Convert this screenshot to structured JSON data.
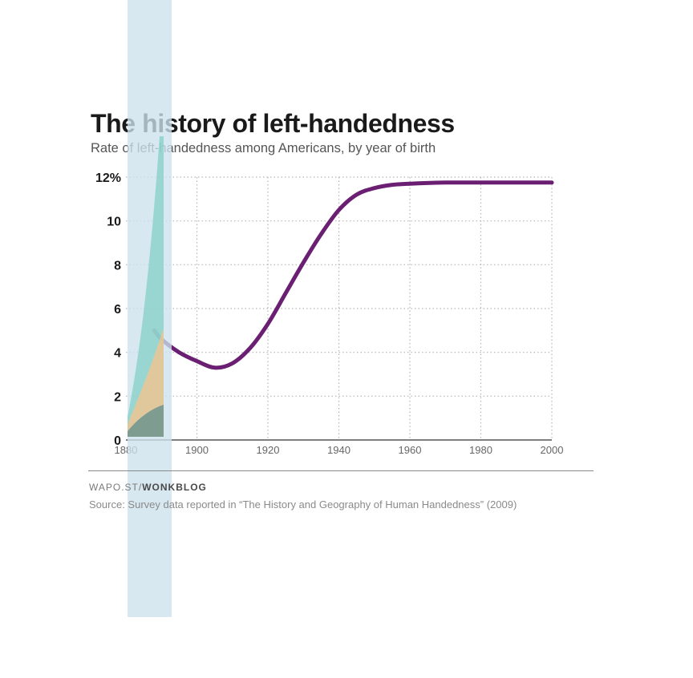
{
  "chart_data": {
    "type": "line",
    "title": "The history of left-handedness",
    "subtitle": "Rate of left-handedness among Americans, by year of birth",
    "x_ticks": [
      "1880",
      "1900",
      "1920",
      "1940",
      "1960",
      "1980",
      "2000"
    ],
    "y_ticks": [
      "0",
      "2",
      "4",
      "6",
      "8",
      "10",
      "12%"
    ],
    "xlim": [
      1880,
      2000
    ],
    "ylim": [
      0,
      12
    ],
    "grid": true,
    "series": [
      {
        "color": "#6b1f73",
        "x": [
          1888,
          1890,
          1895,
          1900,
          1905,
          1910,
          1915,
          1920,
          1925,
          1930,
          1935,
          1940,
          1945,
          1950,
          1955,
          1960,
          1970,
          1980,
          1990,
          2000
        ],
        "y": [
          5.0,
          4.6,
          4.0,
          3.6,
          3.3,
          3.5,
          4.2,
          5.3,
          6.7,
          8.1,
          9.4,
          10.5,
          11.2,
          11.5,
          11.65,
          11.7,
          11.75,
          11.75,
          11.75,
          11.75
        ]
      }
    ]
  },
  "footer": {
    "credit_prefix": "WAPO.ST/",
    "credit_brand": "WONKBLOG",
    "source": "Source: Survey data reported in “The History and Geography of Human Handedness” (2009)"
  },
  "colors": {
    "line": "#6b1f73",
    "grid": "#b5b5b5",
    "overlay": "#cde1ec"
  }
}
